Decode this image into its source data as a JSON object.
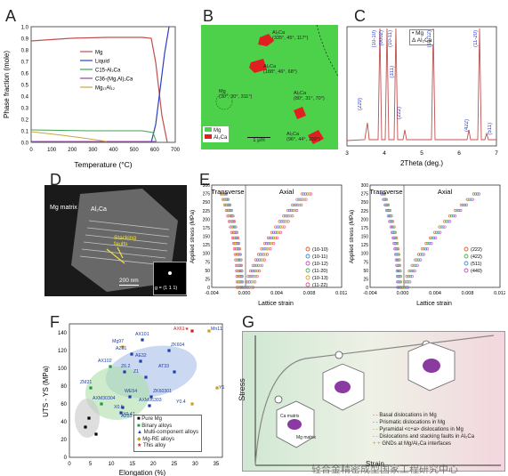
{
  "panels": {
    "A": {
      "letter": "A",
      "ylabel": "Phase fraction (mole)",
      "xlabel": "Temperature (°C)",
      "yticks": [
        "0.0",
        "0.1",
        "0.2",
        "0.3",
        "0.4",
        "0.5",
        "0.6",
        "0.7",
        "0.8",
        "0.9",
        "1.0"
      ],
      "xticks": [
        "0",
        "100",
        "200",
        "300",
        "400",
        "500",
        "600",
        "700"
      ],
      "legend": [
        {
          "label": "Mg",
          "color": "#c0504d"
        },
        {
          "label": "Liquid",
          "color": "#2f3fbf"
        },
        {
          "label": "C15-Al₂Ca",
          "color": "#3fa34d"
        },
        {
          "label": "C36-(Mg,Al)₂Ca",
          "color": "#a040b0"
        },
        {
          "label": "Mg₁₇Al₁₂",
          "color": "#c9a640"
        }
      ]
    },
    "B": {
      "letter": "B",
      "labels": [
        "Al₂Ca\n(335°, 45°, 117°)",
        "Al₂Ca\n(188°, 46°, 68°)",
        "Mg\n(30°, 30°, 311°)",
        "Al₂Ca\n(80°, 31°, 70°)",
        "Al₂Ca\n(96°, 44°, 109°)"
      ],
      "legend": [
        "Mg",
        "Al₂Ca"
      ],
      "scalebar": "1 μm",
      "colors": {
        "mg": "#4dd14a",
        "al2ca": "#e02020"
      }
    },
    "C": {
      "letter": "C",
      "xlabel": "2Theta (deg.)",
      "xticks": [
        "3",
        "4",
        "5",
        "6",
        "7"
      ],
      "legend": [
        "• Mg",
        "Δ Al₂Ca"
      ],
      "mg_peaks": [
        "(10-10)",
        "(0002)",
        "(10-11)",
        "(10-12)",
        "(11-20)"
      ],
      "al2ca_peaks": [
        "(220)",
        "(311)",
        "(222)",
        "(422)",
        "(511)"
      ]
    },
    "D": {
      "letter": "D",
      "labels": [
        "Mg matrix",
        "Al₂Ca",
        "Stacking faults"
      ],
      "scalebar": "200 nm",
      "inset": "g = (1 1 1)"
    },
    "E": {
      "letter": "E",
      "left": {
        "headers": [
          "Transverse",
          "Axial"
        ],
        "ylabel": "Applied stress (MPa)",
        "xlabel": "Lattice strain",
        "yticks": [
          "0",
          "25",
          "50",
          "75",
          "100",
          "125",
          "150",
          "175",
          "200",
          "225",
          "250",
          "275",
          "300"
        ],
        "xticks": [
          "-0.004",
          "0.000",
          "0.004",
          "0.008",
          "0.012"
        ],
        "legend": [
          {
            "label": "(10-10)",
            "color": "#e4572e"
          },
          {
            "label": "(10-11)",
            "color": "#3a8fd8"
          },
          {
            "label": "(10-12)",
            "color": "#c24fc6"
          },
          {
            "label": "(11-20)",
            "color": "#48b04a"
          },
          {
            "label": "(10-13)",
            "color": "#e0a020"
          },
          {
            "label": "(11-22)",
            "color": "#e04f90"
          }
        ]
      },
      "right": {
        "headers": [
          "Transverse",
          "Axial"
        ],
        "ylabel": "Applied stress (MPa)",
        "xlabel": "Lattice strain",
        "yticks": [
          "0",
          "25",
          "50",
          "75",
          "100",
          "125",
          "150",
          "175",
          "200",
          "225",
          "250",
          "275",
          "300"
        ],
        "xticks": [
          "-0.004",
          "0.000",
          "0.004",
          "0.008",
          "0.012"
        ],
        "legend": [
          {
            "label": "(222)",
            "color": "#e4572e"
          },
          {
            "label": "(422)",
            "color": "#48b04a"
          },
          {
            "label": "(511)",
            "color": "#3a8fd8"
          },
          {
            "label": "(440)",
            "color": "#c24fc6"
          }
        ]
      }
    },
    "F": {
      "letter": "F",
      "ylabel": "UTS - YS (MPa)",
      "xlabel": "Elongation (%)",
      "yticks": [
        "0",
        "20",
        "40",
        "60",
        "80",
        "100",
        "120",
        "140"
      ],
      "xticks": [
        "0",
        "5",
        "10",
        "15",
        "20",
        "25",
        "30",
        "35"
      ],
      "legend": [
        {
          "label": "Pure Mg",
          "color": "#000000",
          "shape": "square"
        },
        {
          "label": "Binary alloys",
          "color": "#1a9a3a",
          "shape": "square"
        },
        {
          "label": "Multi-component alloys",
          "color": "#1f3fa8",
          "shape": "triangle"
        },
        {
          "label": "Mg-RE alloys",
          "color": "#c9a020",
          "shape": "diamond"
        },
        {
          "label": "This alloy",
          "color": "#d0201d",
          "shape": "star"
        }
      ],
      "labels": [
        "AX61★",
        "Mn11",
        "AX101",
        "ZK604",
        "Mg97",
        "AZ61",
        "AE32",
        "AX102",
        "Z6.2",
        "Z1",
        "AT33",
        "WE54",
        "ZK60301",
        "ZM21",
        "AXM30304",
        "X0.6",
        "AXM06303",
        "X0.47",
        "Y1",
        "AZ31",
        "Y0.4"
      ]
    },
    "G": {
      "letter": "G",
      "ylabel": "Stress",
      "xlabel": "Strain",
      "legend": [
        {
          "label": "Basal dislocations in Mg",
          "color": "#d04040"
        },
        {
          "label": "Prismatic dislocations in Mg",
          "color": "#4060d0"
        },
        {
          "label": "Pyramidal <c+a> dislocations in Mg",
          "color": "#b0a020"
        },
        {
          "label": "Dislocations and stacking faults in Al₂Ca",
          "color": "#c070c0"
        },
        {
          "label": "GNDs at Mg/Al₂Ca interfaces",
          "color": "#e08020"
        }
      ],
      "inset_labels": [
        "Ca matrix",
        "Mg matrix"
      ]
    }
  },
  "watermark": "轻合金精密成型国家工程研究中心"
}
